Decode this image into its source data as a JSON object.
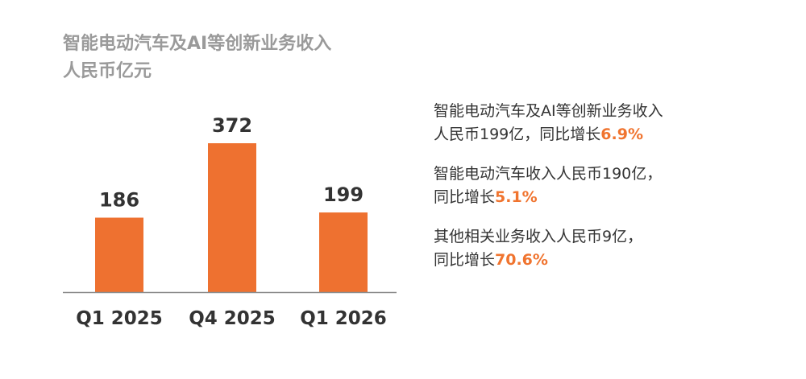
{
  "header": {
    "title": "智能电动汽车及AI等创新业务收入",
    "unit": "人民币亿元"
  },
  "colors": {
    "bar": "#ee7130",
    "highlight": "#f0742f",
    "title": "#9a9a9a",
    "text": "#333333",
    "axis": "#8c8c8c"
  },
  "chart_data": {
    "type": "bar",
    "title": "智能电动汽车及AI等创新业务收入",
    "ylabel": "人民币亿元",
    "categories": [
      "Q1 2025",
      "Q4 2025",
      "Q1 2026"
    ],
    "values": [
      186,
      372,
      199
    ],
    "data_labels": [
      "186",
      "372",
      "199"
    ],
    "ylim": [
      0,
      372
    ],
    "grid": false
  },
  "statements": [
    {
      "line1": "智能电动汽车及AI等创新业务收入",
      "line2_prefix": "人民币199亿，同比增长",
      "line2_highlight": "6.9%"
    },
    {
      "line1": "智能电动汽车收入人民币190亿，",
      "line2_prefix": "同比增长",
      "line2_highlight": "5.1%"
    },
    {
      "line1": "其他相关业务收入人民币9亿，",
      "line2_prefix": "同比增长",
      "line2_highlight": "70.6%"
    }
  ]
}
